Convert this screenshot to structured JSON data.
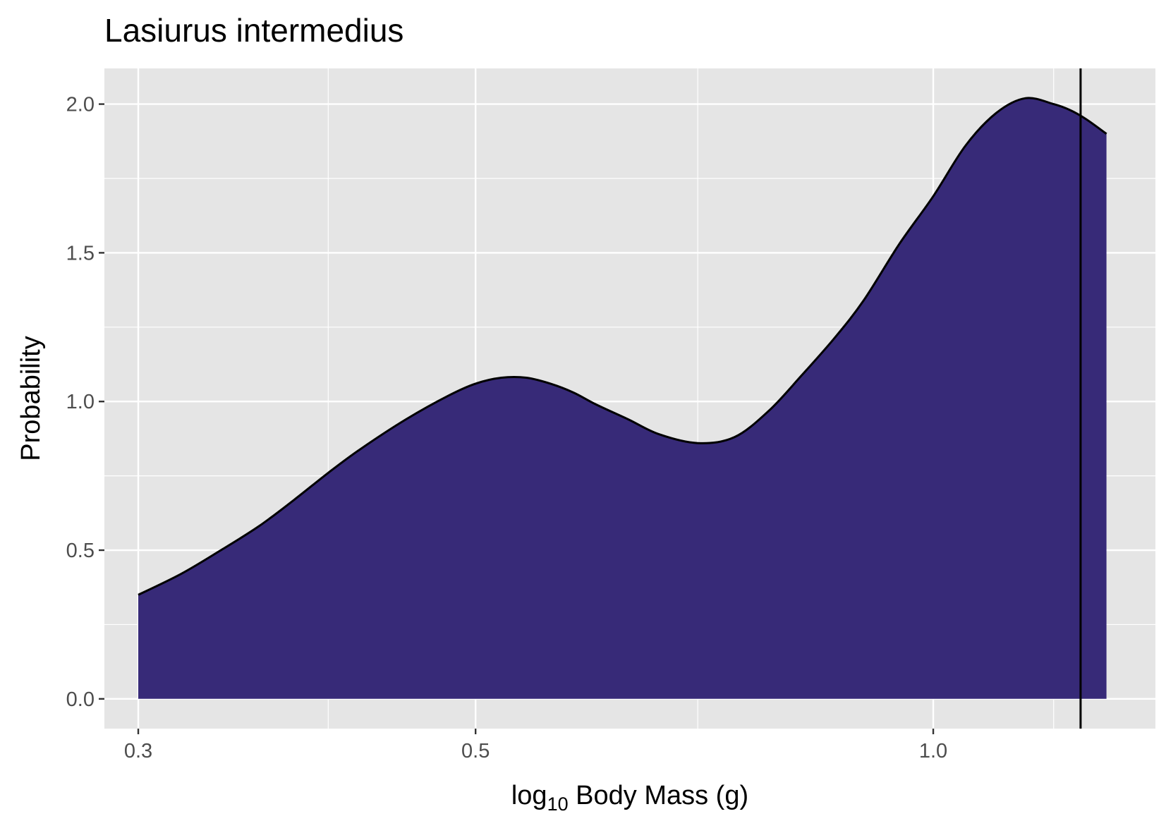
{
  "chart_data": {
    "type": "area",
    "title": "Lasiurus intermedius",
    "xlabel": {
      "prefix": "log",
      "subscript": "10",
      "suffix": " Body Mass (g)"
    },
    "ylabel": "Probability",
    "x_scale": "log10",
    "xlim": [
      0.285,
      1.4
    ],
    "ylim": [
      -0.1,
      2.12
    ],
    "x_major_ticks": [
      0.3,
      0.5,
      1.0
    ],
    "x_major_tick_labels": [
      "0.3",
      "0.5",
      "1.0"
    ],
    "x_minor_ticks": [
      0.4,
      0.7,
      1.2
    ],
    "y_major_ticks": [
      0.0,
      0.5,
      1.0,
      1.5,
      2.0
    ],
    "y_major_tick_labels": [
      "0.0",
      "0.5",
      "1.0",
      "1.5",
      "2.0"
    ],
    "y_minor_ticks": [
      0.25,
      0.75,
      1.25,
      1.75
    ],
    "grid": true,
    "legend": "none",
    "series": [
      {
        "x": [
          0.3,
          0.32,
          0.34,
          0.36,
          0.38,
          0.4,
          0.42,
          0.45,
          0.48,
          0.5,
          0.52,
          0.54,
          0.56,
          0.58,
          0.6,
          0.63,
          0.66,
          0.7,
          0.74,
          0.78,
          0.82,
          0.86,
          0.9,
          0.95,
          1.0,
          1.05,
          1.1,
          1.15,
          1.2,
          1.23,
          1.26,
          1.3
        ],
        "y": [
          0.35,
          0.42,
          0.5,
          0.58,
          0.67,
          0.76,
          0.84,
          0.94,
          1.02,
          1.06,
          1.08,
          1.08,
          1.06,
          1.03,
          0.99,
          0.94,
          0.89,
          0.86,
          0.88,
          0.97,
          1.09,
          1.21,
          1.34,
          1.53,
          1.69,
          1.86,
          1.97,
          2.02,
          2.0,
          1.98,
          1.95,
          1.9
        ]
      }
    ],
    "vline_x": 1.25,
    "colors": {
      "panel": "#e5e5e5",
      "grid": "#ffffff",
      "fill": "#372a78",
      "line": "#000000",
      "tick": "#333333"
    }
  }
}
